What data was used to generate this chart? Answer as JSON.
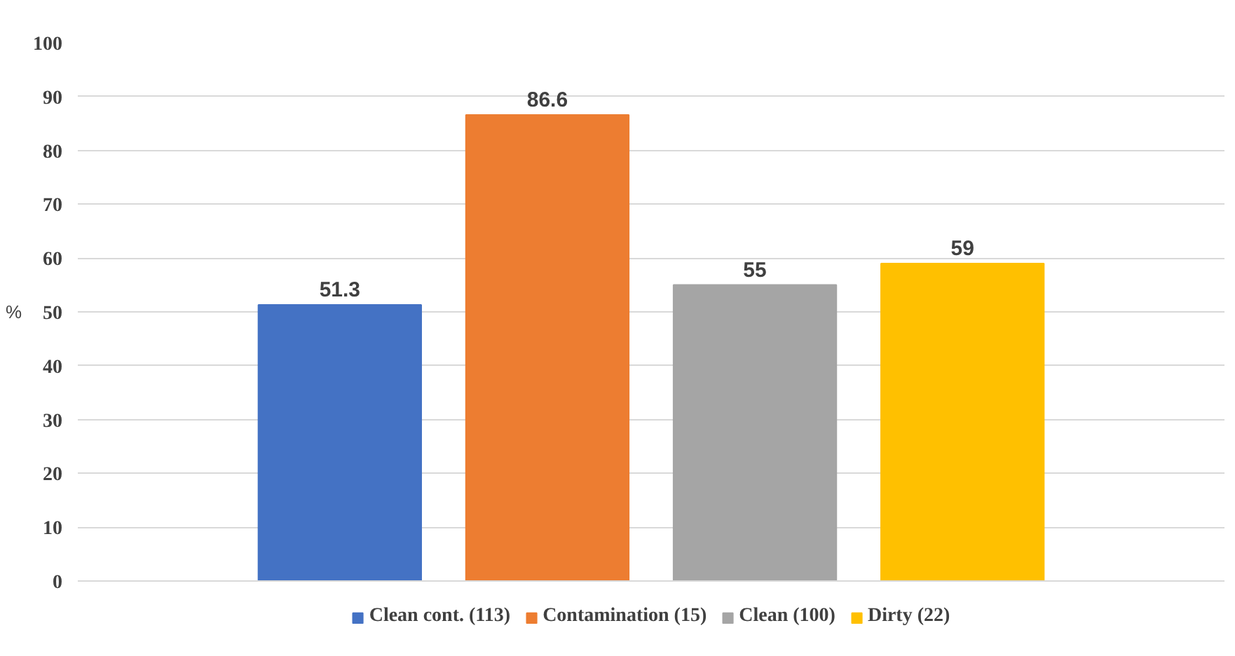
{
  "chart_data": {
    "type": "bar",
    "ylabel": "%",
    "categories": [
      null
    ],
    "series": [
      {
        "name": "Clean cont. (113)",
        "color": "#4472c4",
        "values": [
          51.3
        ]
      },
      {
        "name": "Contamination (15)",
        "color": "#ed7d31",
        "values": [
          86.6
        ]
      },
      {
        "name": "Clean (100)",
        "color": "#a5a5a5",
        "values": [
          55
        ]
      },
      {
        "name": "Dirty (22)",
        "color": "#ffc000",
        "values": [
          59
        ]
      }
    ],
    "ylim": [
      0,
      100
    ],
    "yticks": [
      0,
      10,
      20,
      30,
      40,
      50,
      60,
      70,
      80,
      90,
      100
    ],
    "grid": "y",
    "legend": "bottom",
    "data_labels": true,
    "tick_labels": "y"
  }
}
